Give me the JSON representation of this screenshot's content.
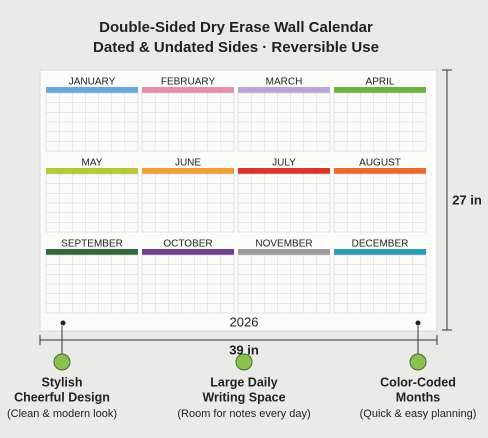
{
  "header": {
    "title_lines": [
      "Double-Sided Dry Erase Wall Calendar",
      "Dated & Undated Sides · Reversible Use"
    ]
  },
  "calendar": {
    "year": "2026",
    "months": [
      {
        "name": "JANUARY",
        "color": "#6aa8d8"
      },
      {
        "name": "FEBRUARY",
        "color": "#e88fb0"
      },
      {
        "name": "MARCH",
        "color": "#b9a5d6"
      },
      {
        "name": "APRIL",
        "color": "#6db33f"
      },
      {
        "name": "MAY",
        "color": "#b5c934"
      },
      {
        "name": "JUNE",
        "color": "#f0a030"
      },
      {
        "name": "JULY",
        "color": "#d9362b"
      },
      {
        "name": "AUGUST",
        "color": "#ec6a2c"
      },
      {
        "name": "SEPTEMBER",
        "color": "#2f6b3a"
      },
      {
        "name": "OCTOBER",
        "color": "#6a3f8f"
      },
      {
        "name": "NOVEMBER",
        "color": "#9a9a9a"
      },
      {
        "name": "DECEMBER",
        "color": "#2a9bb5"
      }
    ]
  },
  "dimensions": {
    "height": "27 in",
    "width": "39 in"
  },
  "features": [
    {
      "title_lines": [
        "Stylish",
        "Cheerful Design"
      ],
      "subtitle": "(Clean & modern look)"
    },
    {
      "title_lines": [
        "Large Daily",
        "Writing Space"
      ],
      "subtitle": "(Room for notes every day)"
    },
    {
      "title_lines": [
        "Color-Coded",
        "Months"
      ],
      "subtitle": "(Quick & easy planning)"
    }
  ]
}
